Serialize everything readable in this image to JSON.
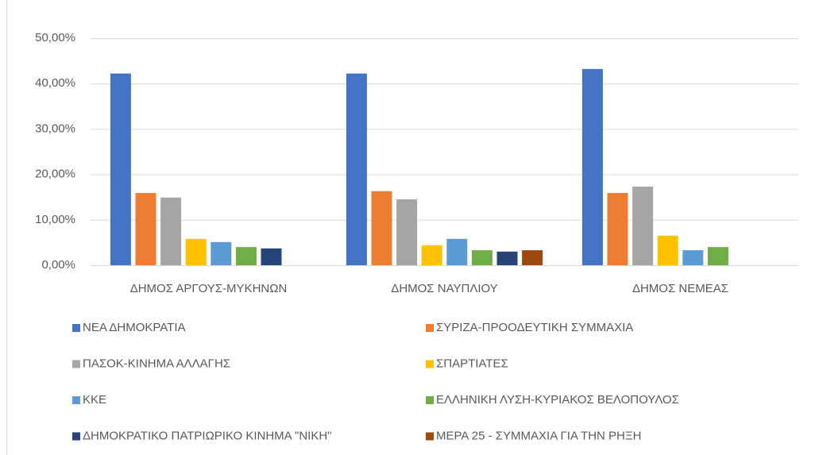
{
  "chart_data": {
    "type": "bar",
    "categories": [
      "ΔΗΜΟΣ ΑΡΓΟΥΣ-ΜΥΚΗΝΩΝ",
      "ΔΗΜΟΣ ΝΑΥΠΛΙΟΥ",
      "ΔΗΜΟΣ ΝΕΜΕΑΣ"
    ],
    "series": [
      {
        "name": "ΝΕΑ ΔΗΜΟΚΡΑΤΙΑ",
        "color": "#4472c4",
        "values": [
          42.2,
          42.2,
          43.2
        ]
      },
      {
        "name": "ΣΥΡΙΖΑ-ΠΡΟΟΔΕΥΤΙΚΗ ΣΥΜΜΑΧΙΑ",
        "color": "#ed7d31",
        "values": [
          15.9,
          16.3,
          15.9
        ]
      },
      {
        "name": "ΠΑΣΟΚ-ΚΙΝΗΜΑ ΑΛΛΑΓΗΣ",
        "color": "#a5a5a5",
        "values": [
          14.9,
          14.5,
          17.3
        ]
      },
      {
        "name": "ΣΠΑΡΤΙΑΤΕΣ",
        "color": "#ffc000",
        "values": [
          5.8,
          4.4,
          6.5
        ]
      },
      {
        "name": "ΚΚΕ",
        "color": "#5b9bd5",
        "values": [
          5.1,
          5.8,
          3.3
        ]
      },
      {
        "name": "ΕΛΛΗΝΙΚΗ ΛΥΣΗ-ΚΥΡΙΑΚΟΣ ΒΕΛΟΠΟΥΛΟΣ",
        "color": "#70ad47",
        "values": [
          4.0,
          3.3,
          4.0
        ]
      },
      {
        "name": "ΔΗΜΟΚΡΑΤΙΚΟ ΠΑΤΡΙΩΡΙΚΟ ΚΙΝΗΜΑ \"ΝΙΚΗ\"",
        "color": "#264478",
        "values": [
          3.7,
          3.0,
          null
        ]
      },
      {
        "name": "ΜΕΡΑ 25 - ΣΥΜΜΑΧΙΑ ΓΙΑ ΤΗΝ ΡΗΞΗ",
        "color": "#9e480e",
        "values": [
          null,
          3.3,
          null
        ]
      }
    ],
    "ylim": [
      0,
      50
    ],
    "yticks": [
      {
        "value": 0,
        "label": "0,00%"
      },
      {
        "value": 10,
        "label": "10,00%"
      },
      {
        "value": 20,
        "label": "20,00%"
      },
      {
        "value": 30,
        "label": "30,00%"
      },
      {
        "value": 40,
        "label": "40,00%"
      },
      {
        "value": 50,
        "label": "50,00%"
      }
    ],
    "grid": true,
    "legend": "bottom"
  }
}
